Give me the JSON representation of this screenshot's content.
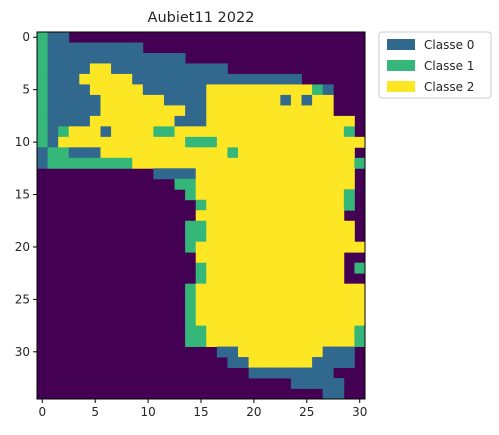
{
  "chart_data": {
    "type": "heatmap",
    "title": "Aubiet11 2022",
    "xlabel": "",
    "ylabel": "",
    "x_ticks": [
      "0",
      "5",
      "10",
      "15",
      "20",
      "25",
      "30"
    ],
    "y_ticks": [
      "0",
      "5",
      "10",
      "15",
      "20",
      "25",
      "30"
    ],
    "xlim": [
      -0.5,
      30.5
    ],
    "ylim": [
      34.5,
      -0.5
    ],
    "grid": false,
    "legend_position": "outside-top-right",
    "background_value": -1,
    "background_color": "#440154",
    "classes": [
      {
        "name": "Classe 0",
        "value": 0,
        "color": "#31688e"
      },
      {
        "name": "Classe 1",
        "value": 1,
        "color": "#35b779"
      },
      {
        "name": "Classe 2",
        "value": 2,
        "color": "#fde725"
      }
    ],
    "rows": [
      "1B0............................",
      "1000000000.....................",
      "1B000000000000.................",
      "1B0002200000000000.............",
      "1B00222220000000000000000......",
      "1B00022222000000222222222210...",
      "1B00002222220000222222202022...",
      "1B00002222222200222222222222...",
      "1B0002222222200022222222222222.",
      "1B1222022221122222222222222221.",
      "10222222222222111222222222222221",
      "B11000222222222222122222222222..",
      "B111111112222222222222222222221.",
      "...........BBBB222222222222222..",
      ".............11222222222222222..",
      "..............1222222222222221..",
      "...............122222222222221..",
      "...............22222222222222...",
      "..............1122222222222222..",
      "..............1122222222222222..",
      "..............12222222222222222.",
      "...............22222222222222...",
      "...............12222222222222.1",
      "...............12222222222222..",
      "..............12222222222222222",
      "..............12222222222222222",
      "..............12222222222222222",
      "..............12222222222222222",
      "..............11222222222222221",
      "..............11222222222222221",
      ".................0022222222000..",
      "..................002222220000..",
      "....................00000000....",
      "........................00000...",
      "...........................00..."
    ]
  }
}
